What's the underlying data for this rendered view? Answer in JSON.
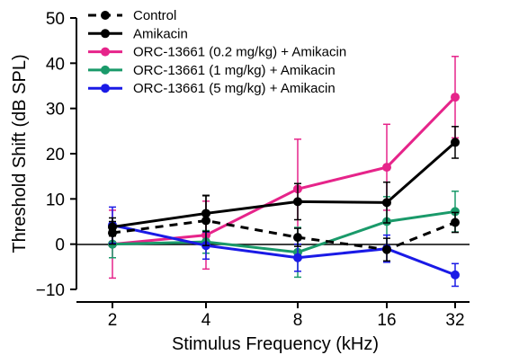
{
  "chart_data": {
    "type": "line",
    "xlabel": "Stimulus Frequency (kHz)",
    "ylabel": "Threshold Shift (dB SPL)",
    "categories": [
      "2",
      "4",
      "8",
      "16",
      "32"
    ],
    "ylim": [
      -10,
      50
    ],
    "yticks": [
      -10,
      0,
      10,
      20,
      30,
      40,
      50
    ],
    "grid": false,
    "legend_position": "top-left",
    "series": [
      {
        "name": "Control",
        "color": "#000000",
        "dashed": true,
        "values": [
          2.5,
          5.2,
          1.5,
          -1.2,
          4.8
        ],
        "errors": [
          2.5,
          5.5,
          2.0,
          2.5,
          2.2
        ]
      },
      {
        "name": "Amikacin",
        "color": "#000000",
        "dashed": false,
        "values": [
          3.8,
          6.8,
          9.4,
          9.2,
          22.5
        ],
        "errors": [
          2.0,
          4.0,
          4.0,
          4.5,
          3.5
        ]
      },
      {
        "name": "ORC-13661 (0.2 mg/kg) + Amikacin",
        "color": "#e6248a",
        "dashed": false,
        "values": [
          0.0,
          2.0,
          12.2,
          17.0,
          32.5
        ],
        "errors": [
          7.5,
          7.5,
          11.0,
          9.5,
          9.0
        ]
      },
      {
        "name": "ORC-13661 (1 mg/kg) + Amikacin",
        "color": "#1a9a6a",
        "dashed": false,
        "values": [
          0.0,
          0.5,
          -1.8,
          5.0,
          7.2
        ],
        "errors": [
          3.0,
          2.5,
          5.5,
          5.5,
          4.5
        ]
      },
      {
        "name": "ORC-13661 (5 mg/kg) + Amikacin",
        "color": "#1a1ae6",
        "dashed": false,
        "values": [
          4.2,
          -0.3,
          -3.0,
          -1.0,
          -6.8
        ],
        "errors": [
          4.0,
          3.0,
          3.0,
          3.0,
          2.5
        ]
      }
    ]
  }
}
